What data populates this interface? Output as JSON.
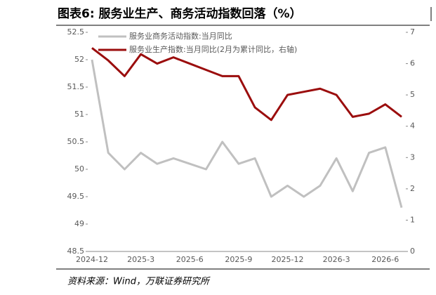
{
  "chart_data": {
    "type": "line",
    "title": "图表6: 服务业生产、商务活动指数回落（%）",
    "source": "资料来源：Wind，万联证券研究所",
    "categories": [
      "2024-12",
      null,
      null,
      "2025-3",
      null,
      null,
      "2025-6",
      null,
      null,
      "2025-9",
      null,
      null,
      "2025-12",
      null,
      null,
      "2026-3",
      null,
      null,
      "2026-6",
      null
    ],
    "series": [
      {
        "name": "服务业商务活动指数:当月同比",
        "color": "#c0c0c0",
        "axis": "y",
        "values": [
          52.0,
          50.3,
          50.0,
          50.3,
          50.1,
          50.2,
          50.1,
          50.0,
          50.5,
          50.1,
          50.2,
          49.5,
          49.7,
          49.5,
          49.7,
          50.2,
          49.6,
          50.3,
          50.4,
          49.3
        ]
      },
      {
        "name": "服务业生产指数:当月同比(2月为累计同比，右轴)",
        "color": "#9b0d0d",
        "axis": "y2",
        "values": [
          6.5,
          6.1,
          5.6,
          6.3,
          6.0,
          6.2,
          6.0,
          5.8,
          5.6,
          5.6,
          4.6,
          4.2,
          5.0,
          5.1,
          5.2,
          5.0,
          4.3,
          4.4,
          4.7,
          4.3
        ]
      }
    ],
    "ylim": [
      48.5,
      52.5
    ],
    "yticks": [
      48.5,
      49,
      49.5,
      50,
      50.5,
      51,
      51.5,
      52,
      52.5
    ],
    "y2lim": [
      0,
      7
    ],
    "y2ticks": [
      0,
      1,
      2,
      3,
      4,
      5,
      6,
      7
    ],
    "legend": "upper-left",
    "grid": false
  }
}
